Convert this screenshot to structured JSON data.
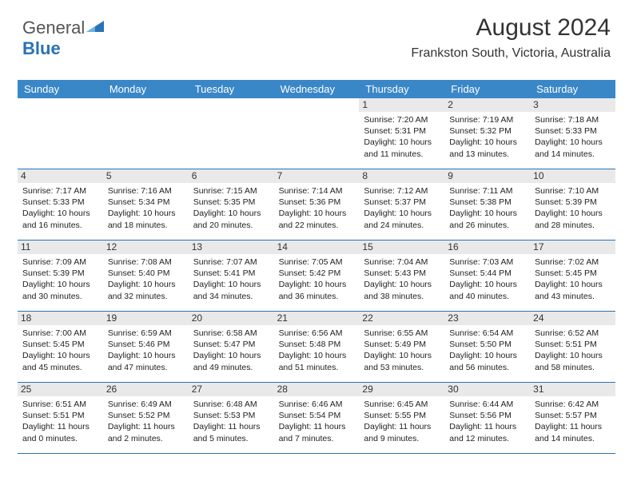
{
  "logo": {
    "general": "General",
    "blue": "Blue"
  },
  "header": {
    "month_title": "August 2024",
    "location": "Frankston South, Victoria, Australia"
  },
  "colors": {
    "header_bg": "#3a87c8",
    "divider": "#2a72b5",
    "daynum_bg": "#e9e9e9",
    "logo_blue": "#2a72b5"
  },
  "day_names": [
    "Sunday",
    "Monday",
    "Tuesday",
    "Wednesday",
    "Thursday",
    "Friday",
    "Saturday"
  ],
  "weeks": [
    [
      null,
      null,
      null,
      null,
      {
        "n": "1",
        "sr": "7:20 AM",
        "ss": "5:31 PM",
        "dl": "10 hours and 11 minutes."
      },
      {
        "n": "2",
        "sr": "7:19 AM",
        "ss": "5:32 PM",
        "dl": "10 hours and 13 minutes."
      },
      {
        "n": "3",
        "sr": "7:18 AM",
        "ss": "5:33 PM",
        "dl": "10 hours and 14 minutes."
      }
    ],
    [
      {
        "n": "4",
        "sr": "7:17 AM",
        "ss": "5:33 PM",
        "dl": "10 hours and 16 minutes."
      },
      {
        "n": "5",
        "sr": "7:16 AM",
        "ss": "5:34 PM",
        "dl": "10 hours and 18 minutes."
      },
      {
        "n": "6",
        "sr": "7:15 AM",
        "ss": "5:35 PM",
        "dl": "10 hours and 20 minutes."
      },
      {
        "n": "7",
        "sr": "7:14 AM",
        "ss": "5:36 PM",
        "dl": "10 hours and 22 minutes."
      },
      {
        "n": "8",
        "sr": "7:12 AM",
        "ss": "5:37 PM",
        "dl": "10 hours and 24 minutes."
      },
      {
        "n": "9",
        "sr": "7:11 AM",
        "ss": "5:38 PM",
        "dl": "10 hours and 26 minutes."
      },
      {
        "n": "10",
        "sr": "7:10 AM",
        "ss": "5:39 PM",
        "dl": "10 hours and 28 minutes."
      }
    ],
    [
      {
        "n": "11",
        "sr": "7:09 AM",
        "ss": "5:39 PM",
        "dl": "10 hours and 30 minutes."
      },
      {
        "n": "12",
        "sr": "7:08 AM",
        "ss": "5:40 PM",
        "dl": "10 hours and 32 minutes."
      },
      {
        "n": "13",
        "sr": "7:07 AM",
        "ss": "5:41 PM",
        "dl": "10 hours and 34 minutes."
      },
      {
        "n": "14",
        "sr": "7:05 AM",
        "ss": "5:42 PM",
        "dl": "10 hours and 36 minutes."
      },
      {
        "n": "15",
        "sr": "7:04 AM",
        "ss": "5:43 PM",
        "dl": "10 hours and 38 minutes."
      },
      {
        "n": "16",
        "sr": "7:03 AM",
        "ss": "5:44 PM",
        "dl": "10 hours and 40 minutes."
      },
      {
        "n": "17",
        "sr": "7:02 AM",
        "ss": "5:45 PM",
        "dl": "10 hours and 43 minutes."
      }
    ],
    [
      {
        "n": "18",
        "sr": "7:00 AM",
        "ss": "5:45 PM",
        "dl": "10 hours and 45 minutes."
      },
      {
        "n": "19",
        "sr": "6:59 AM",
        "ss": "5:46 PM",
        "dl": "10 hours and 47 minutes."
      },
      {
        "n": "20",
        "sr": "6:58 AM",
        "ss": "5:47 PM",
        "dl": "10 hours and 49 minutes."
      },
      {
        "n": "21",
        "sr": "6:56 AM",
        "ss": "5:48 PM",
        "dl": "10 hours and 51 minutes."
      },
      {
        "n": "22",
        "sr": "6:55 AM",
        "ss": "5:49 PM",
        "dl": "10 hours and 53 minutes."
      },
      {
        "n": "23",
        "sr": "6:54 AM",
        "ss": "5:50 PM",
        "dl": "10 hours and 56 minutes."
      },
      {
        "n": "24",
        "sr": "6:52 AM",
        "ss": "5:51 PM",
        "dl": "10 hours and 58 minutes."
      }
    ],
    [
      {
        "n": "25",
        "sr": "6:51 AM",
        "ss": "5:51 PM",
        "dl": "11 hours and 0 minutes."
      },
      {
        "n": "26",
        "sr": "6:49 AM",
        "ss": "5:52 PM",
        "dl": "11 hours and 2 minutes."
      },
      {
        "n": "27",
        "sr": "6:48 AM",
        "ss": "5:53 PM",
        "dl": "11 hours and 5 minutes."
      },
      {
        "n": "28",
        "sr": "6:46 AM",
        "ss": "5:54 PM",
        "dl": "11 hours and 7 minutes."
      },
      {
        "n": "29",
        "sr": "6:45 AM",
        "ss": "5:55 PM",
        "dl": "11 hours and 9 minutes."
      },
      {
        "n": "30",
        "sr": "6:44 AM",
        "ss": "5:56 PM",
        "dl": "11 hours and 12 minutes."
      },
      {
        "n": "31",
        "sr": "6:42 AM",
        "ss": "5:57 PM",
        "dl": "11 hours and 14 minutes."
      }
    ]
  ],
  "labels": {
    "sunrise": "Sunrise:",
    "sunset": "Sunset:",
    "daylight": "Daylight:"
  }
}
